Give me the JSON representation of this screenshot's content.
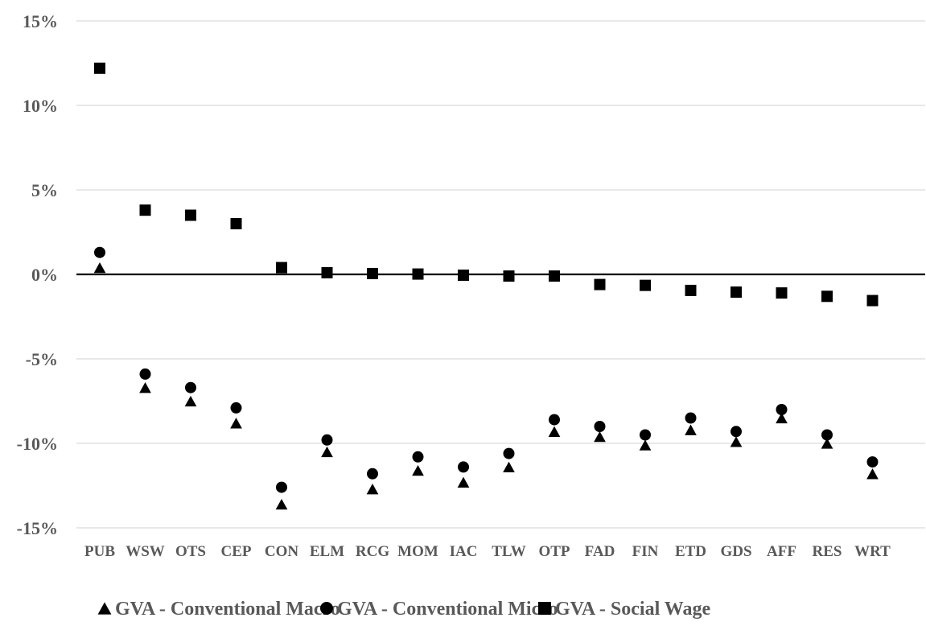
{
  "chart_data": {
    "type": "scatter",
    "categories": [
      "PUB",
      "WSW",
      "OTS",
      "CEP",
      "CON",
      "ELM",
      "RCG",
      "MOM",
      "IAC",
      "TLW",
      "OTP",
      "FAD",
      "FIN",
      "ETD",
      "GDS",
      "AFF",
      "RES",
      "WRT"
    ],
    "y_ticks": [
      "15%",
      "10%",
      "5%",
      "0%",
      "-5%",
      "-10%",
      "-15%"
    ],
    "ylim": [
      -15,
      15
    ],
    "y_unit": "%",
    "grid": true,
    "legend_position": "bottom",
    "series": [
      {
        "name": "GVA - Conventional Macro",
        "marker": "triangle",
        "color": "#000000",
        "values": [
          0.4,
          -6.7,
          -7.5,
          -8.8,
          -13.6,
          -10.5,
          -12.7,
          -11.6,
          -12.3,
          -11.4,
          -9.3,
          -9.6,
          -10.1,
          -9.2,
          -9.9,
          -8.5,
          -10.0,
          -11.8
        ]
      },
      {
        "name": "GVA - Conventional Micro",
        "marker": "circle",
        "color": "#000000",
        "values": [
          1.3,
          -5.9,
          -6.7,
          -7.9,
          -12.6,
          -9.8,
          -11.8,
          -10.8,
          -11.4,
          -10.6,
          -8.6,
          -9.0,
          -9.5,
          -8.5,
          -9.3,
          -8.0,
          -9.5,
          -11.1
        ]
      },
      {
        "name": "GVA - Social Wage",
        "marker": "square",
        "color": "#000000",
        "values": [
          12.2,
          3.8,
          3.5,
          3.0,
          0.4,
          0.1,
          0.05,
          0.02,
          -0.05,
          -0.1,
          -0.1,
          -0.6,
          -0.65,
          -0.95,
          -1.05,
          -1.1,
          -1.3,
          -1.55
        ]
      }
    ]
  }
}
